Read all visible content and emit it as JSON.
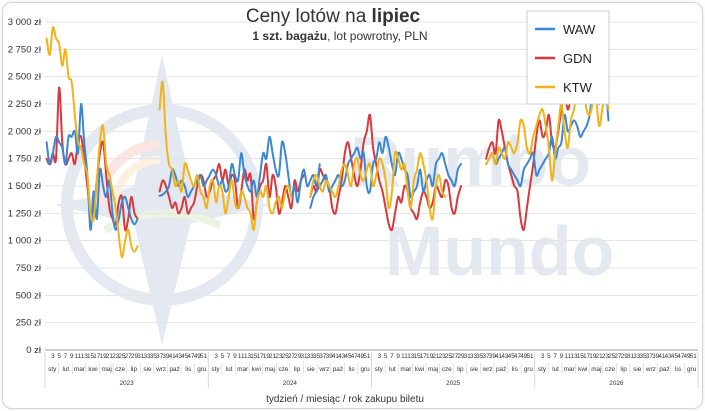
{
  "chart_data": {
    "type": "line",
    "title_prefix": "Ceny lotów na",
    "title_bold": "lipiec",
    "subtitle_bold": "1 szt. bagażu",
    "subtitle_rest": ", lot powrotny, PLN",
    "xlabel": "tydzień / miesiąc / rok zakupu biletu",
    "ylim": [
      0,
      3000
    ],
    "yticks": [
      "0 zł",
      "250 zł",
      "500 zł",
      "750 zł",
      "1 000 zł",
      "1 250 zł",
      "1 500 zł",
      "1 750 zł",
      "2 000 zł",
      "2 250 zł",
      "2 500 zł",
      "2 750 zł",
      "3 000 zł"
    ],
    "grid": true,
    "legend_position": "top-right",
    "watermark": "Rumbo Mundo",
    "week_ticks": [
      "3",
      "5",
      "7",
      "9",
      "11",
      "13",
      "15",
      "17",
      "19",
      "21",
      "23",
      "25",
      "27",
      "29",
      "31",
      "33",
      "35",
      "37",
      "39",
      "41",
      "43",
      "45",
      "47",
      "49",
      "51"
    ],
    "months": [
      "sty",
      "lut",
      "mar",
      "kwi",
      "maj",
      "cze",
      "lip",
      "sie",
      "wrz",
      "paź",
      "lis",
      "gru"
    ],
    "years": [
      "2023",
      "2024",
      "2025",
      "2026"
    ],
    "series": [
      {
        "name": "WAW",
        "color": "#3b87d4",
        "segments": [
          {
            "start": 1,
            "values": [
              1900,
              1700,
              1800,
              1950,
              1900,
              1850,
              1700,
              1950,
              1950,
              2000,
              1800,
              2250,
              1900,
              1600,
              1100,
              1450,
              1200,
              1650,
              1500,
              1400,
              1550,
              1250,
              1100,
              1200,
              1350,
              1400,
              1300,
              1200,
              1150,
              1200
            ]
          },
          {
            "start": 37,
            "values": [
              1410,
              1420,
              1450,
              1500,
              1650,
              1600,
              1500,
              1550,
              1500,
              1400,
              1450,
              1500,
              1550,
              1600,
              1500,
              1550,
              1600,
              1650,
              1600,
              1500,
              1550,
              1450,
              1500,
              1700,
              1600,
              1550,
              1800,
              1600,
              1500,
              1450,
              1550,
              1400,
              1600,
              1800,
              1750,
              1950,
              1800,
              1650,
              1600,
              1900,
              1800,
              1600,
              1400,
              1500,
              1350,
              1550,
              1650,
              1500,
              1550,
              1600,
              1500,
              1700
            ]
          },
          {
            "start": 85,
            "values": [
              1300,
              1400,
              1450,
              1500,
              1550,
              1600,
              1450,
              1500,
              1550,
              1600,
              1500,
              1550,
              1700,
              1750,
              1800,
              1850,
              1750,
              1800,
              1500,
              1450,
              1700,
              1750,
              1900,
              1800,
              1950,
              1850,
              1700,
              1600,
              1800,
              1750,
              1650,
              1600,
              1400,
              1450,
              1500,
              1650,
              1450,
              1550,
              1600,
              1500,
              1700,
              1750,
              1800,
              1700,
              1600,
              1550,
              1500,
              1650,
              1700
            ]
          },
          {
            "start": 141,
            "values": [
              1700,
              1750,
              1800,
              1700,
              1750,
              1800,
              1850,
              1700,
              1650,
              1600,
              1550,
              1500,
              1650,
              1700,
              1750,
              1800,
              1600,
              1650,
              1700,
              1750,
              1800,
              1950,
              1750,
              1850,
              1900,
              2150,
              2000,
              2050,
              2100,
              2050,
              1950,
              2000,
              2050,
              2150,
              2400,
              2500,
              2450,
              2300,
              2400,
              2100
            ]
          }
        ]
      },
      {
        "name": "GDN",
        "color": "#d9383d",
        "segments": [
          {
            "start": 1,
            "values": [
              1750,
              1700,
              1800,
              1750,
              2400,
              1900,
              1700,
              1750,
              1800,
              1700,
              1900,
              1950,
              1750,
              1500,
              1250,
              1300,
              1550,
              1800,
              1900,
              1600,
              1300,
              1200,
              1150,
              1350,
              1400,
              1100,
              1200,
              1400,
              1250,
              1200
            ]
          },
          {
            "start": 37,
            "values": [
              1450,
              1550,
              1500,
              1400,
              1300,
              1350,
              1250,
              1300,
              1400,
              1250,
              1300,
              1350,
              1500,
              1600,
              1550,
              1400,
              1450,
              1550,
              1600,
              1700,
              1550,
              1650,
              1500,
              1600,
              1550,
              1300,
              1450,
              1650,
              1550,
              1600,
              1200,
              1350,
              1500,
              1550,
              1700,
              1400,
              1600,
              1500,
              1250,
              1350,
              1500,
              1400,
              1300,
              1550,
              1450,
              1550,
              1600
            ]
          },
          {
            "start": 85,
            "values": [
              1400,
              1500,
              1450,
              1650,
              1600,
              1550,
              1500,
              1300,
              1250,
              1400,
              1550,
              1800,
              1900,
              1750,
              1600,
              1500,
              1650,
              1900,
              2000,
              2150,
              1850,
              1700,
              1550,
              1450,
              1300,
              1150,
              1100,
              1250,
              1400,
              1350,
              1500,
              1450,
              1300,
              1250,
              1200,
              1350,
              1450,
              1400,
              1300,
              1350,
              1500,
              1450,
              1400,
              1550,
              1500,
              1300,
              1250,
              1400,
              1500
            ]
          },
          {
            "start": 141,
            "values": [
              1750,
              1850,
              1900,
              1800,
              2100,
              2000,
              1850,
              1700,
              1600,
              1500,
              1450,
              1200,
              1100,
              1300,
              1500,
              1700,
              1950,
              2100,
              1950,
              2000,
              2150,
              1900,
              1850,
              2000,
              2200,
              2350,
              2200,
              2300,
              2400,
              2450,
              2550,
              2500,
              2400,
              2450,
              2500,
              2300,
              2250,
              2300,
              2450,
              2400
            ]
          }
        ]
      },
      {
        "name": "KTW",
        "color": "#f2b21a",
        "segments": [
          {
            "start": 1,
            "values": [
              2850,
              2700,
              2950,
              2850,
              2800,
              2600,
              2750,
              2500,
              2450,
              2150,
              1900,
              1850,
              1700,
              1600,
              1250,
              1200,
              1550,
              1900,
              2050,
              1700,
              1600,
              1450,
              1300,
              1050,
              850,
              1000,
              1100,
              950,
              900,
              950
            ]
          },
          {
            "start": 37,
            "values": [
              2200,
              2450,
              1950,
              1700,
              1650,
              1500,
              1550,
              1450,
              1700,
              1650,
              1550,
              1500,
              1600,
              1450,
              1400,
              1300,
              1500,
              1550,
              1350,
              1500,
              1450,
              1250,
              1400,
              1550,
              1350,
              1300,
              1450,
              1400,
              1300,
              1250,
              1100,
              1350,
              1450,
              1400,
              1500,
              1300,
              1250,
              1350,
              1400,
              1300,
              1450,
              1500,
              1400
            ]
          },
          {
            "start": 85,
            "values": [
              1400,
              1550,
              1600,
              1500,
              1450,
              1550,
              1500,
              1450,
              1400,
              1500,
              1650,
              1700,
              1600,
              1500,
              1700,
              1750,
              1600,
              1550,
              1650,
              1700,
              1500,
              1600,
              1750,
              1700,
              1550,
              1300,
              1450,
              1800,
              1750,
              1650,
              1700,
              1450,
              1300,
              1550,
              1650,
              1800,
              1700,
              1550,
              1300,
              1200,
              1500,
              1600,
              1450,
              1400
            ]
          },
          {
            "start": 141,
            "values": [
              1700,
              1750,
              1800,
              1700,
              1850,
              1800,
              1750,
              1900,
              1850,
              1800,
              1900,
              2100,
              2050,
              1850,
              1800,
              1950,
              2050,
              2150,
              2200,
              2050,
              1850,
              1550,
              1800,
              2050,
              2250,
              2000,
              1850,
              2100,
              2200,
              2350,
              2300,
              2400,
              2200,
              2150,
              2250,
              2300,
              2050,
              2200,
              2350,
              2200
            ]
          }
        ]
      }
    ]
  }
}
